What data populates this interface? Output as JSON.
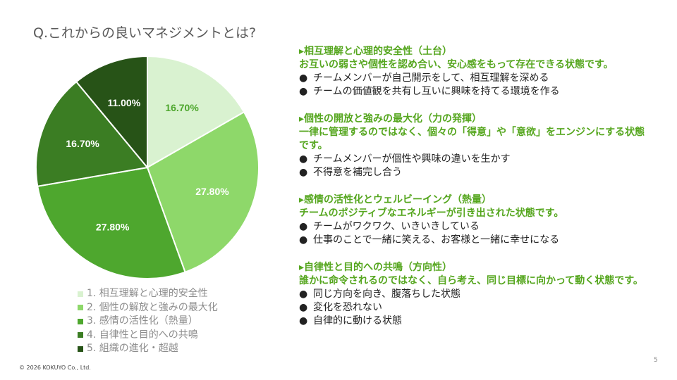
{
  "title": "Q.これからの良いマネジメントとは?",
  "chart_data": {
    "type": "pie",
    "categories": [
      "1. 相互理解と心理的安全性",
      "2. 個性の解放と強みの最大化",
      "3. 感情の活性化（熱量）",
      "4. 自律性と目的への共鳴",
      "5. 組織の進化・超越"
    ],
    "values": [
      16.7,
      27.8,
      27.8,
      16.7,
      11.0
    ],
    "labels": [
      "16.70%",
      "27.80%",
      "27.80%",
      "16.70%",
      "11.00%"
    ],
    "colors": [
      "#d9f2d0",
      "#8ed86a",
      "#4ea72e",
      "#3b7d23",
      "#275317"
    ],
    "label_colors": [
      "#4ea72e",
      "#ffffff",
      "#ffffff",
      "#ffffff",
      "#ffffff"
    ],
    "legend": "bottom-left"
  },
  "sections": [
    {
      "heading": "▸相互理解と心理的安全性（土台）",
      "desc": "お互いの弱さや個性を認め合い、安心感をもって存在できる状態です。",
      "bullets": [
        "チームメンバーが自己開示をして、相互理解を深める",
        "チームの価値観を共有し互いに興味を持てる環境を作る"
      ]
    },
    {
      "heading": "▸個性の開放と強みの最大化（力の発揮）",
      "desc": "一律に管理するのではなく、個々の「得意」や「意欲」をエンジンにする状態です。",
      "bullets": [
        "チームメンバーが個性や興味の違いを生かす",
        "不得意を補完し合う"
      ]
    },
    {
      "heading": "▸感情の活性化とウェルビーイング（熱量）",
      "desc": "チームのポジティブなエネルギーが引き出された状態です。",
      "bullets": [
        "チームがワクワク、いきいきしている",
        "仕事のことで一緒に笑える、お客様と一緒に幸せになる"
      ]
    },
    {
      "heading": "▸自律性と目的への共鳴（方向性）",
      "desc": "誰かに命令されるのではなく、自ら考え、同じ目標に向かって動く状態です。",
      "bullets": [
        "同じ方向を向き、腹落ちした状態",
        "変化を恐れない",
        "自律的に動ける状態"
      ]
    }
  ],
  "bullet_glyph": "●",
  "footer": {
    "copyright": "© 2026 KOKUYO Co., Ltd.",
    "page": "5"
  }
}
